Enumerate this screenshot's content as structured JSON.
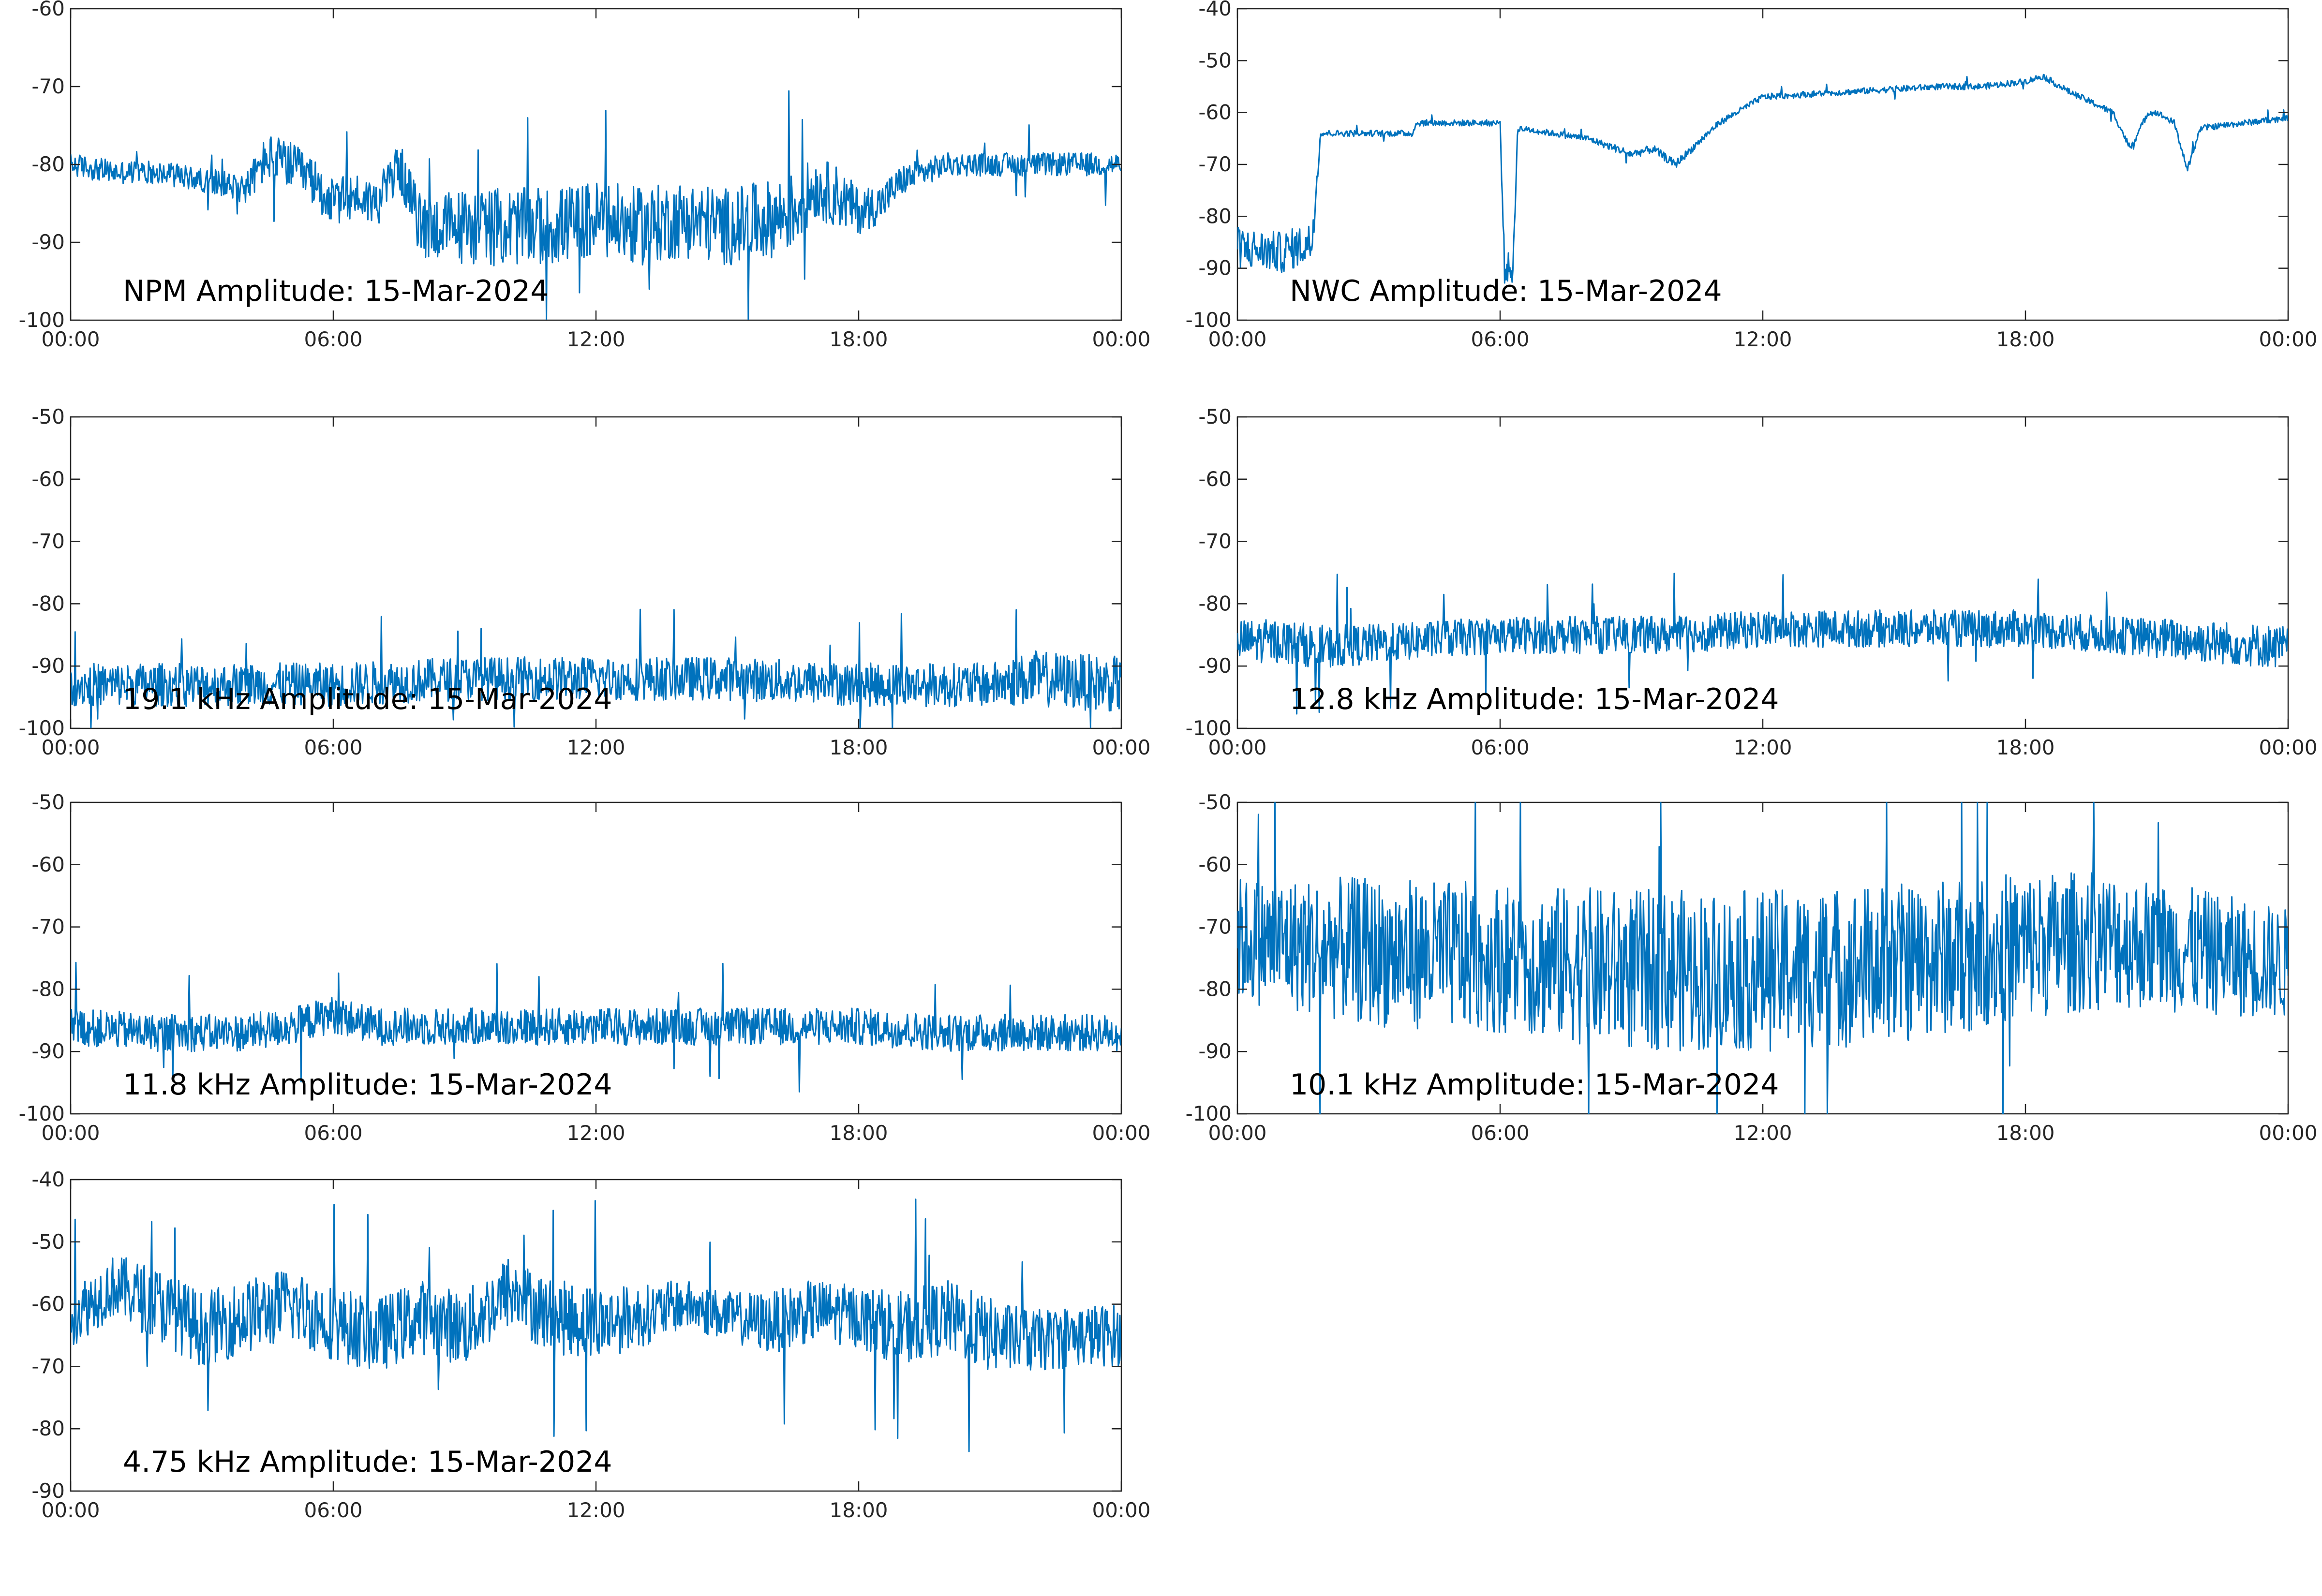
{
  "figure": {
    "background": "#ffffff",
    "trace_color": "#0072BD"
  },
  "chart_data": [
    {
      "type": "line",
      "title": "NPM Amplitude: 15-Mar-2024",
      "xticks": [
        "00:00",
        "06:00",
        "12:00",
        "18:00",
        "00:00"
      ],
      "yticks": [
        -60,
        -70,
        -80,
        -90,
        -100
      ],
      "ylim": [
        -100,
        -60
      ],
      "x_range_hours": [
        0,
        24
      ],
      "series": [
        {
          "x": [
            0,
            1,
            2,
            3,
            4,
            4.5,
            5,
            5.5,
            6,
            6.5,
            7,
            7.5,
            8,
            9,
            10,
            11,
            12,
            13,
            14,
            15,
            16,
            16.5,
            17,
            17.5,
            18,
            18.5,
            19,
            20,
            21,
            22,
            23,
            24
          ],
          "y": [
            -80,
            -81,
            -81,
            -82,
            -83,
            -79,
            -80,
            -82,
            -85,
            -84,
            -85,
            -80,
            -88,
            -88,
            -88,
            -88,
            -87,
            -88,
            -87,
            -88,
            -87,
            -86,
            -83,
            -84,
            -86,
            -85,
            -82,
            -80,
            -80,
            -80,
            -80,
            -80
          ],
          "spread": [
            1.5,
            1.5,
            1.5,
            1.5,
            2,
            3,
            3,
            3,
            3,
            3,
            3,
            3,
            4,
            5,
            5,
            5,
            5,
            5,
            5,
            5,
            5,
            5,
            4,
            4,
            3,
            2.5,
            2,
            1.5,
            1.5,
            1.5,
            1.5,
            1.5
          ]
        }
      ]
    },
    {
      "type": "line",
      "title": "NWC Amplitude: 15-Mar-2024",
      "xticks": [
        "00:00",
        "06:00",
        "12:00",
        "18:00",
        "00:00"
      ],
      "yticks": [
        -40,
        -50,
        -60,
        -70,
        -80,
        -90,
        -100
      ],
      "ylim": [
        -100,
        -40
      ],
      "x_range_hours": [
        0,
        24
      ],
      "series": [
        {
          "x": [
            0,
            1,
            1.7,
            1.9,
            2,
            4,
            4.1,
            6,
            6.1,
            6.3,
            6.4,
            8,
            9,
            9.5,
            10,
            11,
            12,
            14,
            16,
            17,
            18,
            18.4,
            19,
            20,
            20.4,
            20.8,
            21,
            21.4,
            21.7,
            22,
            23,
            24
          ],
          "y": [
            -86,
            -87,
            -85,
            -64,
            -64,
            -64,
            -62,
            -62,
            -90,
            -90,
            -63,
            -65,
            -68,
            -67,
            -70,
            -62,
            -57,
            -56,
            -55,
            -55,
            -54,
            -53,
            -56,
            -60,
            -67,
            -60,
            -60,
            -62,
            -71,
            -63,
            -62,
            -61
          ],
          "spread": [
            4,
            4,
            4,
            0.6,
            0.6,
            0.6,
            0.6,
            0.6,
            3,
            3,
            0.6,
            0.6,
            0.8,
            0.8,
            0.8,
            0.6,
            0.6,
            0.6,
            0.6,
            0.6,
            0.6,
            0.6,
            0.6,
            0.6,
            0.6,
            0.6,
            0.6,
            0.6,
            0.6,
            0.6,
            0.6,
            0.6
          ]
        }
      ]
    },
    {
      "type": "line",
      "title": "19.1 kHz Amplitude: 15-Mar-2024",
      "xticks": [
        "00:00",
        "06:00",
        "12:00",
        "18:00",
        "00:00"
      ],
      "yticks": [
        -50,
        -60,
        -70,
        -80,
        -90,
        -100
      ],
      "ylim": [
        -100,
        -50
      ],
      "x_range_hours": [
        0,
        24
      ],
      "series": [
        {
          "x": [
            0,
            3,
            6,
            9,
            12,
            15,
            18,
            21,
            22,
            24
          ],
          "y": [
            -93,
            -93,
            -93,
            -92,
            -92,
            -92,
            -93,
            -93,
            -92,
            -93
          ],
          "spread": [
            3.5,
            3.5,
            3.5,
            3.5,
            3.5,
            3.5,
            3.5,
            3.5,
            4.5,
            4.5
          ]
        }
      ]
    },
    {
      "type": "line",
      "title": "12.8 kHz Amplitude: 15-Mar-2024",
      "xticks": [
        "00:00",
        "06:00",
        "12:00",
        "18:00",
        "00:00"
      ],
      "yticks": [
        -50,
        -60,
        -70,
        -80,
        -90,
        -100
      ],
      "ylim": [
        -100,
        -50
      ],
      "x_range_hours": [
        0,
        24
      ],
      "series": [
        {
          "x": [
            0,
            1,
            2,
            4,
            6,
            8,
            10,
            12,
            14,
            16,
            18,
            20,
            22,
            24
          ],
          "y": [
            -86,
            -86,
            -87,
            -86,
            -85,
            -85,
            -85,
            -84,
            -84,
            -84,
            -84,
            -85,
            -86,
            -87
          ],
          "spread": [
            3.5,
            3.5,
            3.5,
            3,
            3,
            3,
            3,
            3,
            3,
            3,
            3,
            3,
            3.5,
            3.5
          ]
        }
      ]
    },
    {
      "type": "line",
      "title": "11.8 kHz Amplitude: 15-Mar-2024",
      "xticks": [
        "00:00",
        "06:00",
        "12:00",
        "18:00",
        "00:00"
      ],
      "yticks": [
        -50,
        -60,
        -70,
        -80,
        -90,
        -100
      ],
      "ylim": [
        -100,
        -50
      ],
      "x_range_hours": [
        0,
        24
      ],
      "series": [
        {
          "x": [
            0,
            2,
            4,
            5,
            6,
            7,
            9,
            12,
            15,
            18,
            20,
            22,
            24
          ],
          "y": [
            -86,
            -87,
            -87,
            -86,
            -84,
            -86,
            -86,
            -86,
            -86,
            -86,
            -87,
            -87,
            -87
          ],
          "spread": [
            3,
            3,
            3,
            3,
            3,
            3,
            3,
            3,
            3,
            3,
            3,
            3,
            3
          ]
        }
      ]
    },
    {
      "type": "line",
      "title": "10.1 kHz Amplitude: 15-Mar-2024",
      "xticks": [
        "00:00",
        "06:00",
        "12:00",
        "18:00",
        "00:00"
      ],
      "yticks": [
        -50,
        -60,
        -70,
        -80,
        -90,
        -100
      ],
      "ylim": [
        -100,
        -50
      ],
      "x_range_hours": [
        0,
        24
      ],
      "series": [
        {
          "x": [
            0,
            3,
            6,
            9,
            12,
            15,
            18,
            20,
            22,
            24
          ],
          "y": [
            -72,
            -74,
            -75,
            -77,
            -77,
            -76,
            -73,
            -72,
            -74,
            -76
          ],
          "spread": [
            10,
            12,
            12,
            13,
            13,
            13,
            12,
            11,
            10,
            9
          ]
        }
      ]
    },
    {
      "type": "line",
      "title": "4.75 kHz Amplitude: 15-Mar-2024",
      "xticks": [
        "00:00",
        "06:00",
        "12:00",
        "18:00",
        "00:00"
      ],
      "yticks": [
        -40,
        -50,
        -60,
        -70,
        -80,
        -90
      ],
      "ylim": [
        -90,
        -40
      ],
      "x_range_hours": [
        0,
        24
      ],
      "series": [
        {
          "x": [
            0,
            1,
            2,
            3,
            4,
            5,
            6,
            7,
            8,
            9,
            10,
            11,
            12,
            13,
            14,
            15,
            16,
            17,
            18,
            19,
            20,
            21,
            22,
            23,
            24
          ],
          "y": [
            -62,
            -57,
            -60,
            -64,
            -62,
            -60,
            -63,
            -65,
            -62,
            -64,
            -58,
            -62,
            -63,
            -62,
            -60,
            -62,
            -63,
            -61,
            -62,
            -64,
            -62,
            -65,
            -66,
            -65,
            -65
          ],
          "spread": [
            5,
            5,
            6,
            6,
            6,
            6,
            6,
            6,
            6,
            6,
            6,
            6,
            6,
            5,
            4,
            4,
            5,
            5,
            5,
            6,
            6,
            6,
            5,
            5,
            5
          ]
        }
      ]
    }
  ]
}
